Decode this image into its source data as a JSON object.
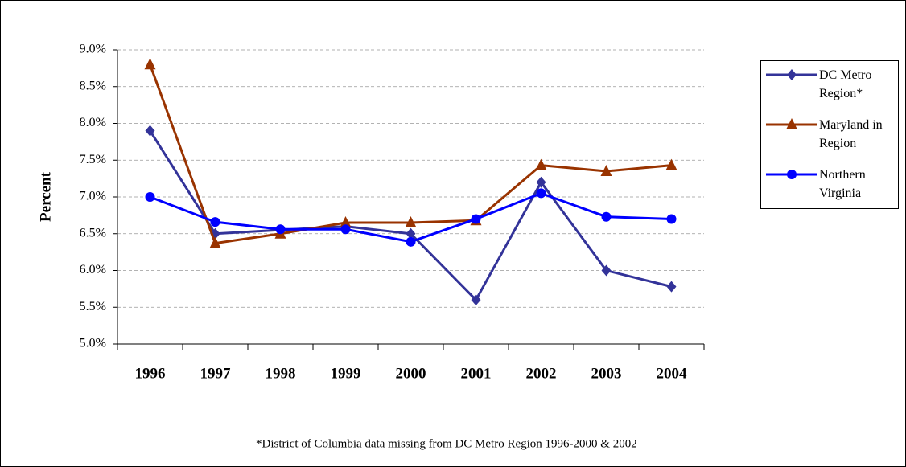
{
  "chart_data": {
    "type": "line",
    "y_label": "Percent",
    "categories": [
      "1996",
      "1997",
      "1998",
      "1999",
      "2000",
      "2001",
      "2002",
      "2003",
      "2004"
    ],
    "series": [
      {
        "name": "DC Metro Region*",
        "color": "#333399",
        "marker": "diamond",
        "values": [
          7.9,
          6.5,
          6.55,
          6.6,
          6.5,
          5.6,
          7.2,
          6.0,
          5.78
        ]
      },
      {
        "name": "Maryland in Region",
        "color": "#993300",
        "marker": "triangle",
        "values": [
          8.8,
          6.37,
          6.5,
          6.65,
          6.65,
          6.68,
          7.43,
          7.35,
          7.43
        ]
      },
      {
        "name": "Northern Virginia",
        "color": "#0000ff",
        "marker": "circle",
        "values": [
          7.0,
          6.66,
          6.56,
          6.56,
          6.39,
          6.7,
          7.05,
          6.73,
          6.7
        ]
      }
    ],
    "ylim": [
      5.0,
      9.0
    ],
    "yticks": [
      {
        "value": 5.0,
        "label": "5.0%"
      },
      {
        "value": 5.5,
        "label": "5.5%"
      },
      {
        "value": 6.0,
        "label": "6.0%"
      },
      {
        "value": 6.5,
        "label": "6.5%"
      },
      {
        "value": 7.0,
        "label": "7.0%"
      },
      {
        "value": 7.5,
        "label": "7.5%"
      },
      {
        "value": 8.0,
        "label": "8.0%"
      },
      {
        "value": 8.5,
        "label": "8.5%"
      },
      {
        "value": 9.0,
        "label": "9.0%"
      }
    ],
    "grid": true,
    "legend": "right",
    "footnote": "*District of Columbia data missing from DC Metro Region 1996-2000 & 2002"
  }
}
